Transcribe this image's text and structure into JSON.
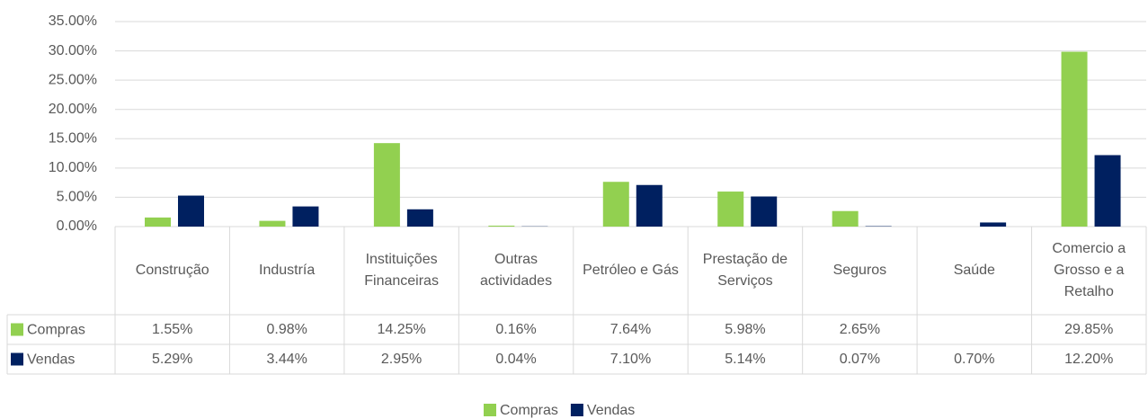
{
  "chart_data": {
    "type": "bar",
    "categories": [
      "Construção",
      "Industría",
      "Instituições Financeiras",
      "Outras actividades",
      "Petróleo e Gás",
      "Prestação de Serviços",
      "Seguros",
      "Saúde",
      "Comercio a Grosso e a Retalho"
    ],
    "series": [
      {
        "name": "Compras",
        "color": "#92d050",
        "values": [
          1.55,
          0.98,
          14.25,
          0.16,
          7.64,
          5.98,
          2.65,
          null,
          29.85
        ],
        "value_labels": [
          "1.55%",
          "0.98%",
          "14.25%",
          "0.16%",
          "7.64%",
          "5.98%",
          "2.65%",
          null,
          "29.85%"
        ]
      },
      {
        "name": "Vendas",
        "color": "#002060",
        "values": [
          5.29,
          3.44,
          2.95,
          0.04,
          7.1,
          5.14,
          0.07,
          0.7,
          12.2
        ],
        "value_labels": [
          "5.29%",
          "3.44%",
          "2.95%",
          "0.04%",
          "7.10%",
          "5.14%",
          "0.07%",
          "0.70%",
          "12.20%"
        ]
      }
    ],
    "ylim": [
      0,
      35
    ],
    "yticks": [
      {
        "value": 0,
        "label": "0.00%"
      },
      {
        "value": 5,
        "label": "5.00%"
      },
      {
        "value": 10,
        "label": "10.00%"
      },
      {
        "value": 15,
        "label": "15.00%"
      },
      {
        "value": 20,
        "label": "20.00%"
      },
      {
        "value": 25,
        "label": "25.00%"
      },
      {
        "value": 30,
        "label": "30.00%"
      },
      {
        "value": 35,
        "label": "35.00%"
      }
    ],
    "grid": true,
    "legend": "bottom"
  }
}
